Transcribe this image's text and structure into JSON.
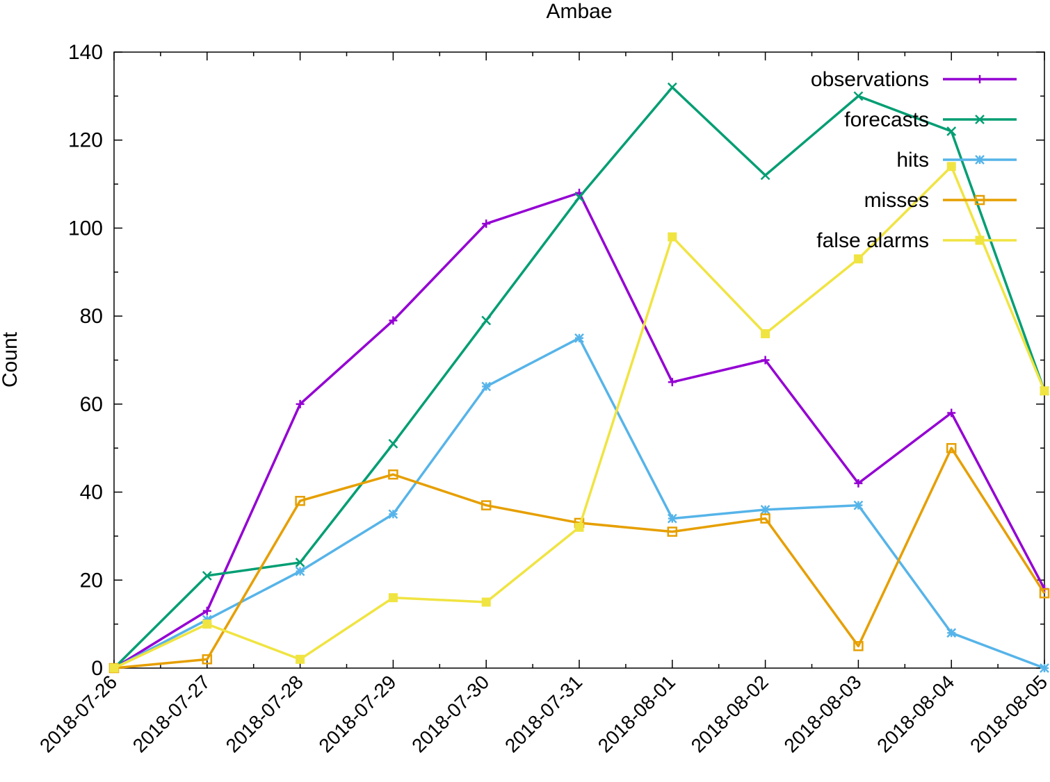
{
  "chart_data": {
    "type": "line",
    "title": "Ambae",
    "xlabel": "",
    "ylabel": "Count",
    "x": [
      "2018-07-26",
      "2018-07-27",
      "2018-07-28",
      "2018-07-29",
      "2018-07-30",
      "2018-07-31",
      "2018-08-01",
      "2018-08-02",
      "2018-08-03",
      "2018-08-04",
      "2018-08-05"
    ],
    "ylim": [
      0,
      140
    ],
    "yticks": [
      0,
      20,
      40,
      60,
      80,
      100,
      120,
      140
    ],
    "grid": false,
    "legend_position": "top-right",
    "series": [
      {
        "name": "observations",
        "color": "#9400d3",
        "marker": "plus",
        "values": [
          0,
          13,
          60,
          79,
          101,
          108,
          65,
          70,
          42,
          58,
          18
        ]
      },
      {
        "name": "forecasts",
        "color": "#009e73",
        "marker": "cross",
        "values": [
          0,
          21,
          24,
          51,
          79,
          107,
          132,
          112,
          130,
          122,
          63
        ]
      },
      {
        "name": "hits",
        "color": "#56b4e9",
        "marker": "star",
        "values": [
          0,
          11,
          22,
          35,
          64,
          75,
          34,
          36,
          37,
          8,
          0
        ]
      },
      {
        "name": "misses",
        "color": "#e69f00",
        "marker": "open-square",
        "values": [
          0,
          2,
          38,
          44,
          37,
          33,
          31,
          34,
          5,
          50,
          17
        ]
      },
      {
        "name": "false alarms",
        "color": "#f0e442",
        "marker": "filled-square",
        "values": [
          0,
          10,
          2,
          16,
          15,
          32,
          98,
          76,
          93,
          114,
          63
        ]
      }
    ]
  }
}
